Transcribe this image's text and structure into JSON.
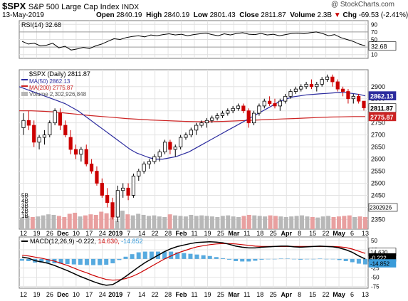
{
  "header": {
    "symbol": "$SPX",
    "name": "S&P 500 Large Cap Index",
    "exchange": "INDX",
    "watermark": "@ StockCharts.com",
    "date": "13-May-2019",
    "open_label": "Open",
    "open": "2840.19",
    "high_label": "High",
    "high": "2840.19",
    "low_label": "Low",
    "low": "2801.43",
    "close_label": "Close",
    "close": "2811.87",
    "volume_label": "Volume",
    "volume": "2.3B",
    "chg_label": "Chg",
    "chg": "-69.53 (-2.41%)",
    "chg_arrow": "▼"
  },
  "colors": {
    "up": "#000000",
    "down": "#cc0000",
    "ma50": "#2b2b9e",
    "ma200": "#cc2222",
    "rsi": "#000000",
    "macd": "#000000",
    "signal": "#cc0000",
    "hist": "#3a9bd9",
    "volume": "#b8b8b8",
    "volume_down": "#e8a0a0"
  },
  "chart_data": {
    "type": "candlestick",
    "rsi": {
      "legend": "RSI(14) 32.68",
      "current": "32.68",
      "levels": [
        "90",
        "70",
        "50",
        "30",
        "10"
      ],
      "ylim": [
        0,
        100
      ],
      "values": [
        45,
        38,
        40,
        33,
        35,
        40,
        28,
        32,
        22,
        25,
        29,
        26,
        33,
        38,
        45,
        52,
        50,
        55,
        58,
        60,
        57,
        62,
        60,
        63,
        65,
        62,
        64,
        60,
        63,
        65,
        67,
        63,
        60,
        65,
        62,
        66,
        68,
        64,
        63,
        66,
        62,
        64,
        60,
        63,
        66,
        67,
        65,
        68,
        70,
        66,
        60,
        63,
        55,
        50,
        45,
        38,
        33
      ]
    },
    "price": {
      "legend_symbol": "$SPX (Daily) 2811.87",
      "legend_ma50": "MA(50) 2862.13",
      "legend_ma200": "MA(200) 2775.87",
      "legend_volume": "Volume 2,302,926,848",
      "ylim": [
        2310,
        2970
      ],
      "y_ticks": [
        "2900",
        "2850",
        "2800",
        "2750",
        "2700",
        "2650",
        "2600",
        "2550",
        "2500",
        "2450",
        "2400",
        "2350"
      ],
      "last_close_label": "2811.87",
      "ma50_label": "2862.13",
      "ma200_label": "2775.87",
      "volume_label": "2302926",
      "volume_ticks": [
        "5B",
        "4B",
        "3B",
        "2B",
        "1B"
      ],
      "x_labels": [
        "12",
        "19",
        "26",
        "Dec",
        "10",
        "17",
        "24",
        "2019",
        "7",
        "14",
        "22",
        "28",
        "Feb",
        "11",
        "19",
        "25",
        "Mar",
        "11",
        "18",
        "25",
        "Apr",
        "8",
        "15",
        "22",
        "May",
        "6",
        "13"
      ],
      "candles": [
        [
          2730,
          2790,
          2700,
          2760
        ],
        [
          2760,
          2800,
          2720,
          2740
        ],
        [
          2740,
          2760,
          2650,
          2670
        ],
        [
          2670,
          2700,
          2640,
          2690
        ],
        [
          2690,
          2720,
          2660,
          2700
        ],
        [
          2700,
          2760,
          2690,
          2750
        ],
        [
          2750,
          2810,
          2740,
          2800
        ],
        [
          2790,
          2810,
          2720,
          2740
        ],
        [
          2740,
          2760,
          2690,
          2700
        ],
        [
          2690,
          2720,
          2620,
          2640
        ],
        [
          2640,
          2660,
          2600,
          2620
        ],
        [
          2620,
          2650,
          2590,
          2640
        ],
        [
          2640,
          2660,
          2570,
          2580
        ],
        [
          2580,
          2600,
          2540,
          2550
        ],
        [
          2550,
          2570,
          2490,
          2500
        ],
        [
          2500,
          2520,
          2440,
          2450
        ],
        [
          2450,
          2480,
          2400,
          2420
        ],
        [
          2420,
          2440,
          2350,
          2360
        ],
        [
          2360,
          2490,
          2340,
          2470
        ],
        [
          2470,
          2500,
          2440,
          2480
        ],
        [
          2480,
          2500,
          2430,
          2450
        ],
        [
          2450,
          2540,
          2440,
          2530
        ],
        [
          2530,
          2560,
          2510,
          2550
        ],
        [
          2550,
          2590,
          2540,
          2580
        ],
        [
          2580,
          2600,
          2560,
          2590
        ],
        [
          2590,
          2620,
          2580,
          2610
        ],
        [
          2610,
          2640,
          2590,
          2630
        ],
        [
          2630,
          2680,
          2620,
          2670
        ],
        [
          2670,
          2680,
          2620,
          2640
        ],
        [
          2640,
          2660,
          2610,
          2650
        ],
        [
          2650,
          2700,
          2640,
          2690
        ],
        [
          2690,
          2710,
          2680,
          2700
        ],
        [
          2700,
          2730,
          2690,
          2720
        ],
        [
          2720,
          2750,
          2700,
          2740
        ],
        [
          2740,
          2760,
          2730,
          2750
        ],
        [
          2750,
          2770,
          2730,
          2760
        ],
        [
          2760,
          2780,
          2750,
          2770
        ],
        [
          2770,
          2790,
          2760,
          2780
        ],
        [
          2780,
          2800,
          2770,
          2790
        ],
        [
          2790,
          2810,
          2780,
          2800
        ],
        [
          2800,
          2820,
          2790,
          2810
        ],
        [
          2810,
          2830,
          2800,
          2820
        ],
        [
          2820,
          2830,
          2790,
          2800
        ],
        [
          2800,
          2810,
          2730,
          2750
        ],
        [
          2750,
          2800,
          2740,
          2790
        ],
        [
          2790,
          2830,
          2780,
          2820
        ],
        [
          2820,
          2850,
          2810,
          2840
        ],
        [
          2840,
          2860,
          2820,
          2830
        ],
        [
          2830,
          2850,
          2810,
          2820
        ],
        [
          2820,
          2850,
          2800,
          2840
        ],
        [
          2840,
          2870,
          2830,
          2860
        ],
        [
          2860,
          2890,
          2850,
          2880
        ],
        [
          2880,
          2900,
          2870,
          2890
        ],
        [
          2890,
          2910,
          2880,
          2900
        ],
        [
          2900,
          2920,
          2890,
          2910
        ],
        [
          2910,
          2930,
          2890,
          2900
        ],
        [
          2900,
          2920,
          2880,
          2910
        ],
        [
          2910,
          2940,
          2900,
          2930
        ],
        [
          2930,
          2950,
          2920,
          2940
        ],
        [
          2940,
          2950,
          2900,
          2920
        ],
        [
          2920,
          2930,
          2880,
          2890
        ],
        [
          2890,
          2900,
          2860,
          2880
        ],
        [
          2880,
          2890,
          2830,
          2850
        ],
        [
          2850,
          2870,
          2830,
          2860
        ],
        [
          2860,
          2870,
          2830,
          2840
        ],
        [
          2840,
          2840,
          2801,
          2812
        ]
      ],
      "ma50": [
        2900,
        2890,
        2880,
        2870,
        2860,
        2850,
        2840,
        2830,
        2815,
        2800,
        2780,
        2760,
        2740,
        2720,
        2700,
        2680,
        2660,
        2640,
        2625,
        2615,
        2605,
        2600,
        2600,
        2605,
        2610,
        2620,
        2630,
        2645,
        2660,
        2675,
        2690,
        2705,
        2720,
        2735,
        2750,
        2765,
        2780,
        2795,
        2810,
        2825,
        2840,
        2850,
        2858,
        2862,
        2866,
        2868,
        2870,
        2872,
        2874,
        2876,
        2875,
        2872,
        2868,
        2862
      ],
      "ma200": [
        2800,
        2800,
        2798,
        2795,
        2790,
        2785,
        2780,
        2776,
        2772,
        2768,
        2765,
        2762,
        2760,
        2758,
        2756,
        2755,
        2755,
        2756,
        2758,
        2760,
        2762,
        2764,
        2766,
        2768,
        2770,
        2772,
        2774,
        2775,
        2776,
        2776
      ],
      "volumes": [
        2.2,
        2.5,
        2.3,
        2.4,
        2.6,
        2.8,
        2.7,
        2.5,
        2.3,
        2.9,
        3.1,
        2.4,
        2.6,
        2.8,
        2.7,
        3.3,
        3.0,
        2.2,
        1.6,
        3.5,
        2.8,
        2.6,
        2.9,
        2.7,
        2.5,
        2.6,
        2.4,
        2.3,
        2.8,
        2.6,
        2.5,
        2.4,
        2.7,
        2.5,
        2.6,
        2.5,
        2.4,
        2.3,
        2.5,
        2.6,
        2.4,
        2.3,
        2.5,
        2.7,
        2.6,
        2.5,
        2.4,
        2.6,
        2.5,
        2.4,
        2.3,
        2.4,
        2.5,
        2.6,
        2.4,
        2.3,
        2.2,
        2.4,
        2.5,
        2.3,
        2.4,
        2.5,
        2.6,
        2.3,
        2.4,
        2.3
      ],
      "volume_down": [
        0,
        0,
        1,
        0,
        0,
        0,
        0,
        1,
        1,
        1,
        1,
        0,
        1,
        1,
        1,
        1,
        1,
        1,
        0,
        0,
        1,
        0,
        0,
        0,
        0,
        0,
        0,
        0,
        1,
        0,
        0,
        0,
        0,
        0,
        0,
        0,
        0,
        0,
        0,
        0,
        0,
        0,
        1,
        1,
        0,
        0,
        0,
        1,
        1,
        0,
        0,
        0,
        0,
        0,
        0,
        1,
        0,
        0,
        0,
        1,
        1,
        1,
        1,
        0,
        1,
        1
      ]
    },
    "macd": {
      "legend_name": "MACD(12,26,9)",
      "legend_macd": "-0.222",
      "legend_signal": "14.630",
      "legend_hist": "-14.852",
      "label_signal": "14.630",
      "label_macd": "-0.222",
      "label_hist": "-14.852",
      "ylim": [
        -80,
        60
      ],
      "y_ticks": [
        "50",
        "25",
        "0",
        "-25",
        "-50",
        "-75"
      ],
      "macd": [
        5,
        2,
        -5,
        -8,
        -12,
        -18,
        -25,
        -32,
        -40,
        -48,
        -55,
        -62,
        -68,
        -72,
        -70,
        -60,
        -48,
        -35,
        -22,
        -10,
        0,
        10,
        20,
        28,
        34,
        38,
        42,
        45,
        46,
        47,
        46,
        44,
        40,
        35,
        32,
        30,
        30,
        32,
        33,
        34,
        35,
        35,
        33,
        32,
        33,
        34,
        35,
        34,
        33,
        30,
        25,
        18,
        8,
        0
      ],
      "signal": [
        10,
        8,
        5,
        2,
        -2,
        -6,
        -12,
        -18,
        -25,
        -32,
        -38,
        -45,
        -51,
        -56,
        -58,
        -57,
        -54,
        -48,
        -40,
        -30,
        -20,
        -10,
        0,
        8,
        16,
        22,
        28,
        33,
        36,
        39,
        41,
        42,
        42,
        41,
        39,
        37,
        35,
        34,
        34,
        34,
        34,
        34,
        34,
        34,
        34,
        34,
        34,
        34,
        34,
        33,
        31,
        27,
        21,
        15
      ],
      "hist": [
        -5,
        -6,
        -10,
        -10,
        -10,
        -12,
        -13,
        -14,
        -15,
        -16,
        -17,
        -17,
        -17,
        -16,
        -12,
        -3,
        6,
        13,
        18,
        20,
        20,
        20,
        20,
        20,
        18,
        16,
        14,
        12,
        10,
        8,
        5,
        2,
        -2,
        -6,
        -7,
        -7,
        -5,
        -2,
        -1,
        0,
        1,
        1,
        -1,
        -2,
        -1,
        0,
        1,
        0,
        -1,
        -3,
        -6,
        -9,
        -13,
        -15
      ],
      "x_labels": [
        "12",
        "19",
        "26",
        "Dec",
        "10",
        "17",
        "24",
        "2019",
        "7",
        "14",
        "22",
        "28",
        "Feb",
        "11",
        "19",
        "25",
        "Mar",
        "11",
        "18",
        "25",
        "Apr",
        "8",
        "15",
        "22",
        "May",
        "6",
        "13"
      ]
    }
  }
}
